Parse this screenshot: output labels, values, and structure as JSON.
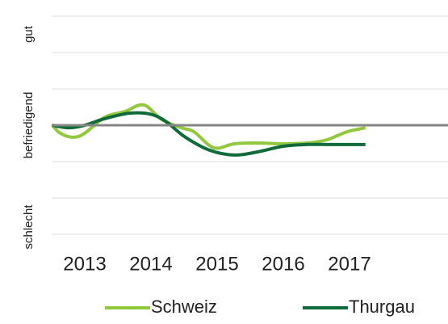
{
  "chart_data": {
    "type": "line",
    "xlim": [
      2012.5,
      2018.5
    ],
    "xticks": [
      2013,
      2014,
      2015,
      2016,
      2017
    ],
    "ylim": [
      -3.5,
      3.4
    ],
    "yticks": [
      {
        "value": 2.5,
        "label": "gut"
      },
      {
        "value": 0,
        "label": "befriedigend"
      },
      {
        "value": -2.8,
        "label": "schlecht"
      }
    ],
    "grid_lines": [
      -3,
      -2,
      -1,
      1,
      2,
      3
    ],
    "reference_line": 0,
    "legend": "bottom",
    "series": [
      {
        "name": "Schweiz",
        "color": "#92c83e",
        "x": [
          2012.51,
          2012.63,
          2012.82,
          2013,
          2013.3,
          2013.61,
          2013.89,
          2014.16,
          2014.46,
          2014.65,
          2014.95,
          2015.26,
          2015.62,
          2015.99,
          2016.35,
          2016.66,
          2016.96,
          2017.24
        ],
        "values": [
          0,
          -0.22,
          -0.33,
          -0.22,
          0.22,
          0.38,
          0.56,
          0.16,
          -0.07,
          -0.18,
          -0.62,
          -0.51,
          -0.49,
          -0.51,
          -0.49,
          -0.4,
          -0.18,
          -0.07
        ]
      },
      {
        "name": "Thurgau",
        "color": "#0f6b3a",
        "x": [
          2012.51,
          2012.76,
          2013,
          2013.3,
          2013.67,
          2013.98,
          2014.22,
          2014.52,
          2014.89,
          2015.26,
          2015.62,
          2015.99,
          2016.35,
          2016.72,
          2017.24
        ],
        "values": [
          0,
          -0.07,
          0,
          0.18,
          0.33,
          0.31,
          0.11,
          -0.33,
          -0.69,
          -0.82,
          -0.73,
          -0.58,
          -0.53,
          -0.53,
          -0.53
        ]
      }
    ]
  }
}
